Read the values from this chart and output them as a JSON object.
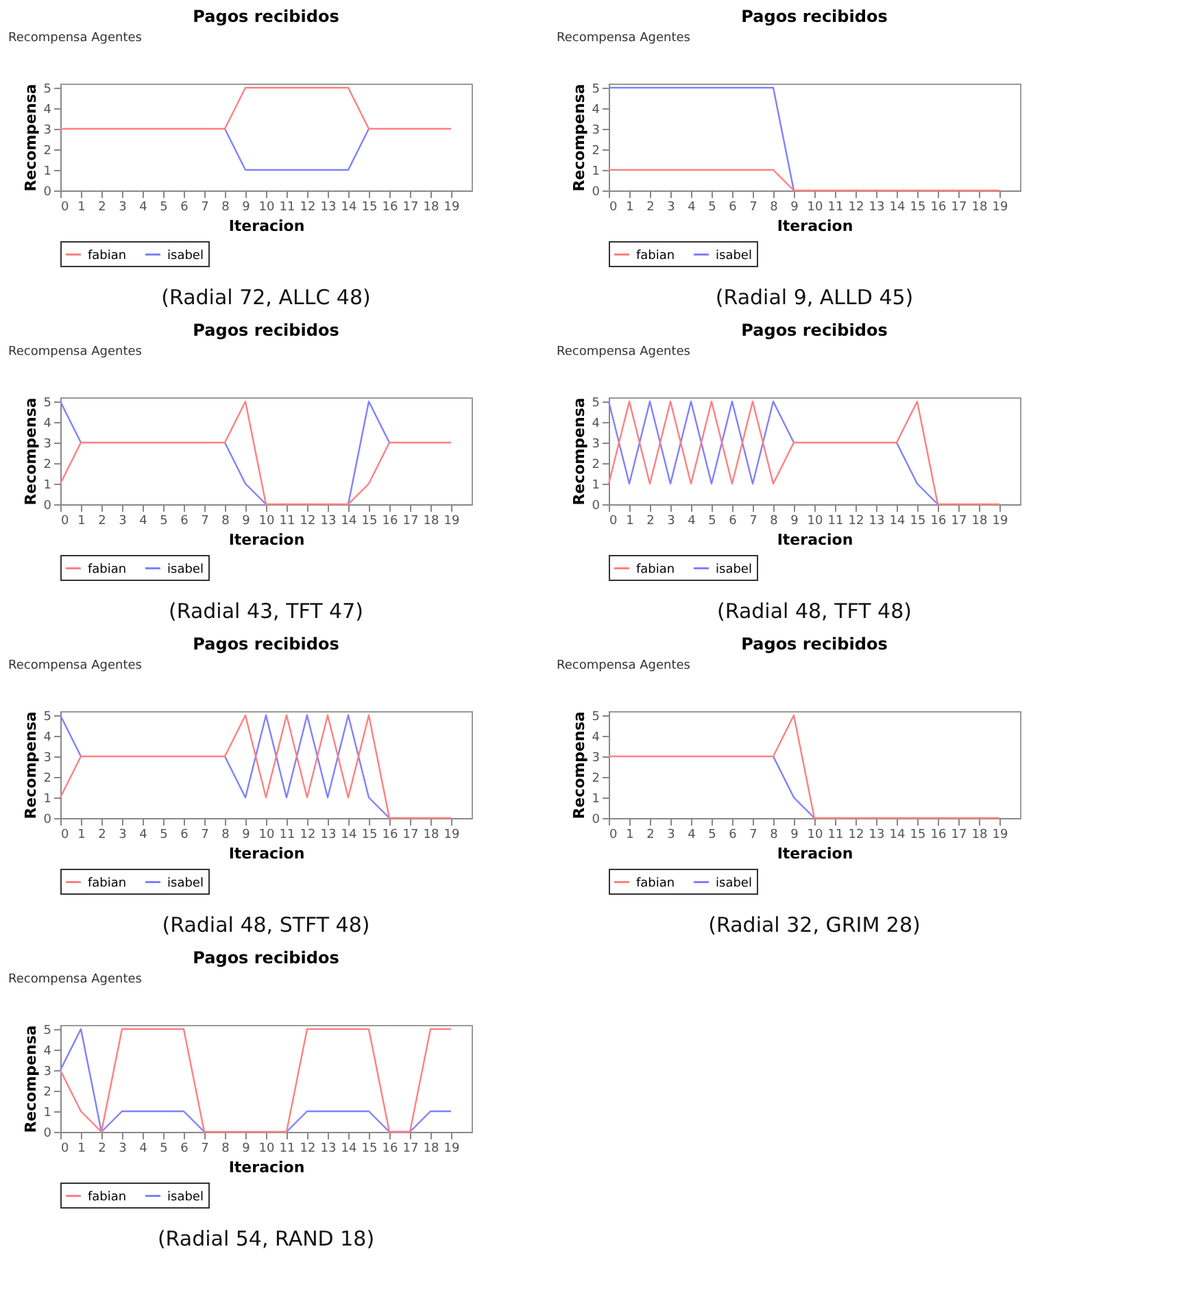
{
  "chart_data": [
    {
      "type": "line",
      "title": "Pagos recibidos",
      "xlabel": "Iteracion",
      "ylabel": "Recompensa",
      "annotations": [
        "Recompensa Agentes",
        "(Radial 72, ALLC 48)"
      ],
      "x": [
        0,
        1,
        2,
        3,
        4,
        5,
        6,
        7,
        8,
        9,
        10,
        11,
        12,
        13,
        14,
        15,
        16,
        17,
        18,
        19
      ],
      "xlim": [
        0,
        20
      ],
      "xticks": [
        0,
        1,
        2,
        3,
        4,
        5,
        6,
        7,
        8,
        9,
        10,
        11,
        12,
        13,
        14,
        15,
        16,
        17,
        18,
        19
      ],
      "ylim": [
        0,
        5.2
      ],
      "yticks": [
        0,
        1,
        2,
        3,
        4,
        5
      ],
      "legend": "bottom",
      "series": [
        {
          "name": "fabian",
          "color": "#ff8080",
          "values": [
            3,
            3,
            3,
            3,
            3,
            3,
            3,
            3,
            3,
            5,
            5,
            5,
            5,
            5,
            5,
            3,
            3,
            3,
            3,
            3
          ]
        },
        {
          "name": "isabel",
          "color": "#8080ff",
          "values": [
            null,
            null,
            null,
            null,
            null,
            null,
            null,
            null,
            3,
            1,
            1,
            1,
            1,
            1,
            1,
            3,
            null,
            null,
            null,
            null
          ]
        }
      ]
    },
    {
      "type": "line",
      "title": "Pagos recibidos",
      "xlabel": "Iteracion",
      "ylabel": "Recompensa",
      "annotations": [
        "Recompensa Agentes",
        "(Radial 9, ALLD 45)"
      ],
      "x": [
        0,
        1,
        2,
        3,
        4,
        5,
        6,
        7,
        8,
        9,
        10,
        11,
        12,
        13,
        14,
        15,
        16,
        17,
        18,
        19
      ],
      "xlim": [
        0,
        20
      ],
      "xticks": [
        0,
        1,
        2,
        3,
        4,
        5,
        6,
        7,
        8,
        9,
        10,
        11,
        12,
        13,
        14,
        15,
        16,
        17,
        18,
        19
      ],
      "ylim": [
        0,
        5.2
      ],
      "yticks": [
        0,
        1,
        2,
        3,
        4,
        5
      ],
      "legend": "bottom",
      "series": [
        {
          "name": "fabian",
          "color": "#ff8080",
          "values": [
            1,
            1,
            1,
            1,
            1,
            1,
            1,
            1,
            1,
            0,
            0,
            0,
            0,
            0,
            0,
            0,
            0,
            0,
            0,
            0
          ]
        },
        {
          "name": "isabel",
          "color": "#8080ff",
          "values": [
            5,
            5,
            5,
            5,
            5,
            5,
            5,
            5,
            5,
            0,
            null,
            null,
            null,
            null,
            null,
            null,
            null,
            null,
            null,
            null
          ]
        }
      ]
    },
    {
      "type": "line",
      "title": "Pagos recibidos",
      "xlabel": "Iteracion",
      "ylabel": "Recompensa",
      "annotations": [
        "Recompensa Agentes",
        "(Radial 43, TFT 47)"
      ],
      "x": [
        0,
        1,
        2,
        3,
        4,
        5,
        6,
        7,
        8,
        9,
        10,
        11,
        12,
        13,
        14,
        15,
        16,
        17,
        18,
        19
      ],
      "xlim": [
        0,
        20
      ],
      "xticks": [
        0,
        1,
        2,
        3,
        4,
        5,
        6,
        7,
        8,
        9,
        10,
        11,
        12,
        13,
        14,
        15,
        16,
        17,
        18,
        19
      ],
      "ylim": [
        0,
        5.2
      ],
      "yticks": [
        0,
        1,
        2,
        3,
        4,
        5
      ],
      "legend": "bottom",
      "series": [
        {
          "name": "fabian",
          "color": "#ff8080",
          "values": [
            1,
            3,
            3,
            3,
            3,
            3,
            3,
            3,
            3,
            5,
            0,
            0,
            0,
            0,
            0,
            1,
            3,
            3,
            3,
            3
          ]
        },
        {
          "name": "isabel",
          "color": "#8080ff",
          "values": [
            5,
            3,
            null,
            null,
            null,
            null,
            null,
            null,
            3,
            1,
            0,
            null,
            null,
            null,
            0,
            5,
            3,
            null,
            null,
            null
          ]
        }
      ]
    },
    {
      "type": "line",
      "title": "Pagos recibidos",
      "xlabel": "Iteracion",
      "ylabel": "Recompensa",
      "annotations": [
        "Recompensa Agentes",
        "(Radial 48, TFT 48)"
      ],
      "x": [
        0,
        1,
        2,
        3,
        4,
        5,
        6,
        7,
        8,
        9,
        10,
        11,
        12,
        13,
        14,
        15,
        16,
        17,
        18,
        19
      ],
      "xlim": [
        0,
        20
      ],
      "xticks": [
        0,
        1,
        2,
        3,
        4,
        5,
        6,
        7,
        8,
        9,
        10,
        11,
        12,
        13,
        14,
        15,
        16,
        17,
        18,
        19
      ],
      "ylim": [
        0,
        5.2
      ],
      "yticks": [
        0,
        1,
        2,
        3,
        4,
        5
      ],
      "legend": "bottom",
      "series": [
        {
          "name": "fabian",
          "color": "#ff8080",
          "values": [
            1,
            5,
            1,
            5,
            1,
            5,
            1,
            5,
            1,
            3,
            3,
            3,
            3,
            3,
            3,
            5,
            0,
            0,
            0,
            0
          ]
        },
        {
          "name": "isabel",
          "color": "#8080ff",
          "values": [
            5,
            1,
            5,
            1,
            5,
            1,
            5,
            1,
            5,
            3,
            null,
            null,
            null,
            null,
            3,
            1,
            0,
            null,
            null,
            null
          ]
        }
      ]
    },
    {
      "type": "line",
      "title": "Pagos recibidos",
      "xlabel": "Iteracion",
      "ylabel": "Recompensa",
      "annotations": [
        "Recompensa Agentes",
        "(Radial 48, STFT 48)"
      ],
      "x": [
        0,
        1,
        2,
        3,
        4,
        5,
        6,
        7,
        8,
        9,
        10,
        11,
        12,
        13,
        14,
        15,
        16,
        17,
        18,
        19
      ],
      "xlim": [
        0,
        20
      ],
      "xticks": [
        0,
        1,
        2,
        3,
        4,
        5,
        6,
        7,
        8,
        9,
        10,
        11,
        12,
        13,
        14,
        15,
        16,
        17,
        18,
        19
      ],
      "ylim": [
        0,
        5.2
      ],
      "yticks": [
        0,
        1,
        2,
        3,
        4,
        5
      ],
      "legend": "bottom",
      "series": [
        {
          "name": "fabian",
          "color": "#ff8080",
          "values": [
            1,
            3,
            3,
            3,
            3,
            3,
            3,
            3,
            3,
            5,
            1,
            5,
            1,
            5,
            1,
            5,
            0,
            0,
            0,
            0
          ]
        },
        {
          "name": "isabel",
          "color": "#8080ff",
          "values": [
            5,
            3,
            null,
            null,
            null,
            null,
            null,
            null,
            3,
            1,
            5,
            1,
            5,
            1,
            5,
            1,
            0,
            null,
            null,
            null
          ]
        }
      ]
    },
    {
      "type": "line",
      "title": "Pagos recibidos",
      "xlabel": "Iteracion",
      "ylabel": "Recompensa",
      "annotations": [
        "Recompensa Agentes",
        "(Radial 32, GRIM 28)"
      ],
      "x": [
        0,
        1,
        2,
        3,
        4,
        5,
        6,
        7,
        8,
        9,
        10,
        11,
        12,
        13,
        14,
        15,
        16,
        17,
        18,
        19
      ],
      "xlim": [
        0,
        20
      ],
      "xticks": [
        0,
        1,
        2,
        3,
        4,
        5,
        6,
        7,
        8,
        9,
        10,
        11,
        12,
        13,
        14,
        15,
        16,
        17,
        18,
        19
      ],
      "ylim": [
        0,
        5.2
      ],
      "yticks": [
        0,
        1,
        2,
        3,
        4,
        5
      ],
      "legend": "bottom",
      "series": [
        {
          "name": "fabian",
          "color": "#ff8080",
          "values": [
            3,
            3,
            3,
            3,
            3,
            3,
            3,
            3,
            3,
            5,
            0,
            0,
            0,
            0,
            0,
            0,
            0,
            0,
            0,
            0
          ]
        },
        {
          "name": "isabel",
          "color": "#8080ff",
          "values": [
            null,
            null,
            null,
            null,
            null,
            null,
            null,
            null,
            3,
            1,
            0,
            null,
            null,
            null,
            null,
            null,
            null,
            null,
            null,
            null
          ]
        }
      ]
    },
    {
      "type": "line",
      "title": "Pagos recibidos",
      "xlabel": "Iteracion",
      "ylabel": "Recompensa",
      "annotations": [
        "Recompensa Agentes",
        "(Radial 54, RAND 18)"
      ],
      "x": [
        0,
        1,
        2,
        3,
        4,
        5,
        6,
        7,
        8,
        9,
        10,
        11,
        12,
        13,
        14,
        15,
        16,
        17,
        18,
        19
      ],
      "xlim": [
        0,
        20
      ],
      "xticks": [
        0,
        1,
        2,
        3,
        4,
        5,
        6,
        7,
        8,
        9,
        10,
        11,
        12,
        13,
        14,
        15,
        16,
        17,
        18,
        19
      ],
      "ylim": [
        0,
        5.2
      ],
      "yticks": [
        0,
        1,
        2,
        3,
        4,
        5
      ],
      "legend": "bottom",
      "series": [
        {
          "name": "fabian",
          "color": "#ff8080",
          "values": [
            3,
            1,
            0,
            5,
            5,
            5,
            5,
            0,
            0,
            0,
            0,
            0,
            5,
            5,
            5,
            5,
            0,
            0,
            5,
            5
          ]
        },
        {
          "name": "isabel",
          "color": "#8080ff",
          "values": [
            3,
            5,
            0,
            1,
            1,
            1,
            1,
            0,
            null,
            null,
            null,
            0,
            1,
            1,
            1,
            1,
            0,
            0,
            1,
            1
          ]
        }
      ]
    }
  ]
}
